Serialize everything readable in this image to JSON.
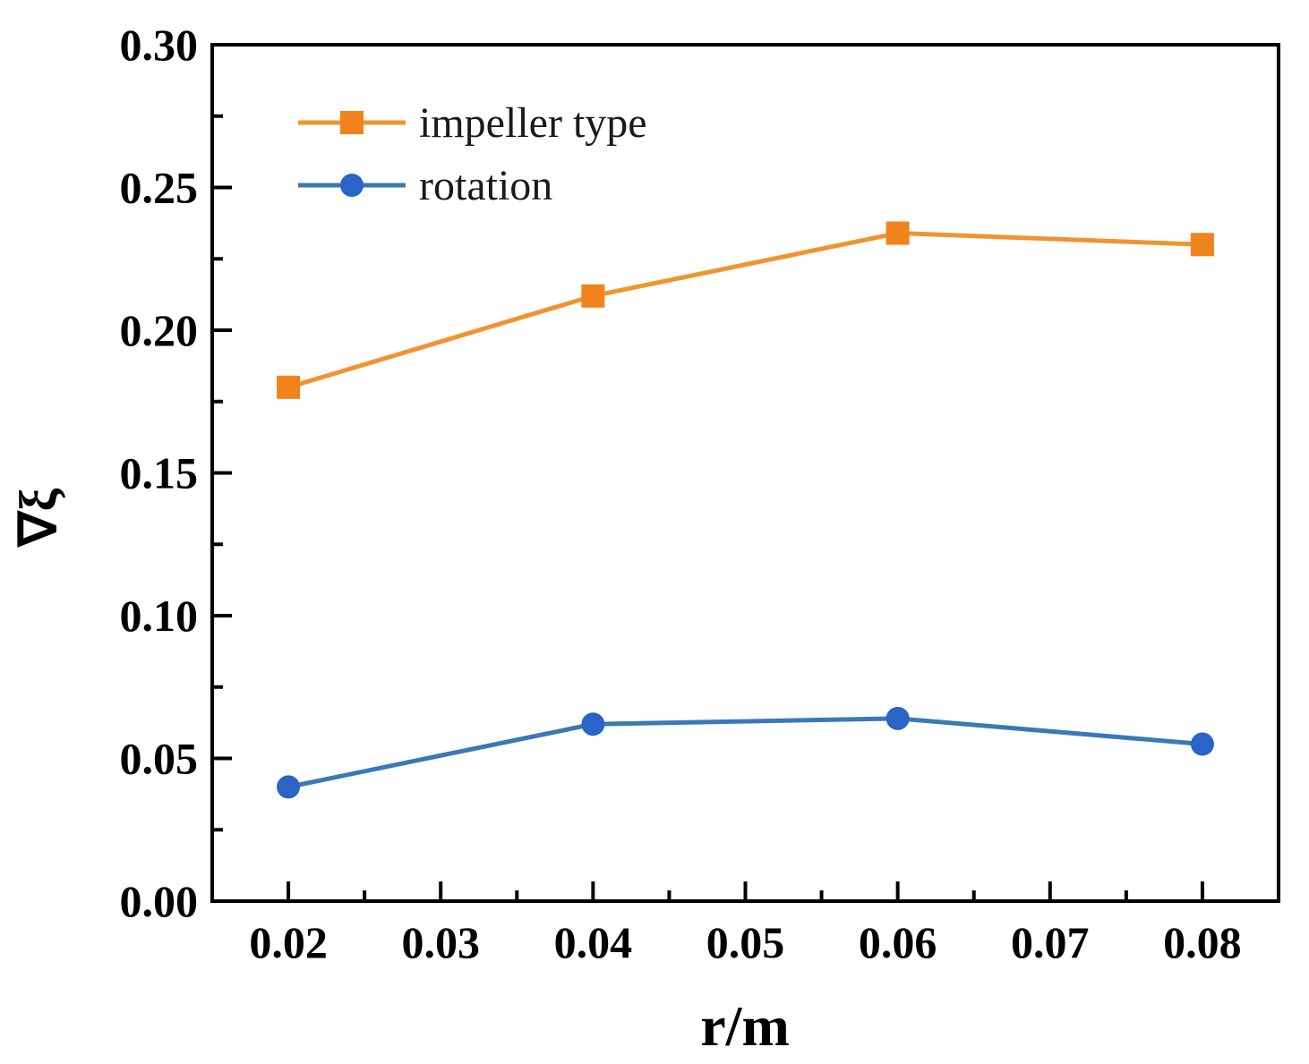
{
  "chart_data": {
    "type": "line",
    "title": "",
    "xlabel": "r/m",
    "ylabel": "∇ξ",
    "x": [
      0.02,
      0.04,
      0.06,
      0.08
    ],
    "series": [
      {
        "name": "impeller type",
        "marker": "square",
        "marker_color": "#F0831C",
        "line_color": "#F0942F",
        "values": [
          0.18,
          0.212,
          0.234,
          0.23
        ]
      },
      {
        "name": "rotation",
        "marker": "circle",
        "marker_color": "#2B63C6",
        "line_color": "#3B78B8",
        "values": [
          0.04,
          0.062,
          0.064,
          0.055
        ]
      }
    ],
    "xlim": [
      0.015,
      0.085
    ],
    "ylim": [
      0.0,
      0.3
    ],
    "x_ticks": [
      0.02,
      0.03,
      0.04,
      0.05,
      0.06,
      0.07,
      0.08
    ],
    "x_tick_labels": [
      "0.02",
      "0.03",
      "0.04",
      "0.05",
      "0.06",
      "0.07",
      "0.08"
    ],
    "x_minor_ticks": [
      0.025,
      0.035,
      0.045,
      0.055,
      0.065,
      0.075
    ],
    "y_ticks": [
      0.0,
      0.05,
      0.1,
      0.15,
      0.2,
      0.25,
      0.3
    ],
    "y_tick_labels": [
      "0.00",
      "0.05",
      "0.10",
      "0.15",
      "0.20",
      "0.25",
      "0.30"
    ],
    "y_minor_ticks": [
      0.025,
      0.075,
      0.125,
      0.175,
      0.225,
      0.275
    ],
    "grid": false,
    "legend_position": "upper-left-inside",
    "axis_color": "#000000",
    "background_color": "#ffffff"
  }
}
